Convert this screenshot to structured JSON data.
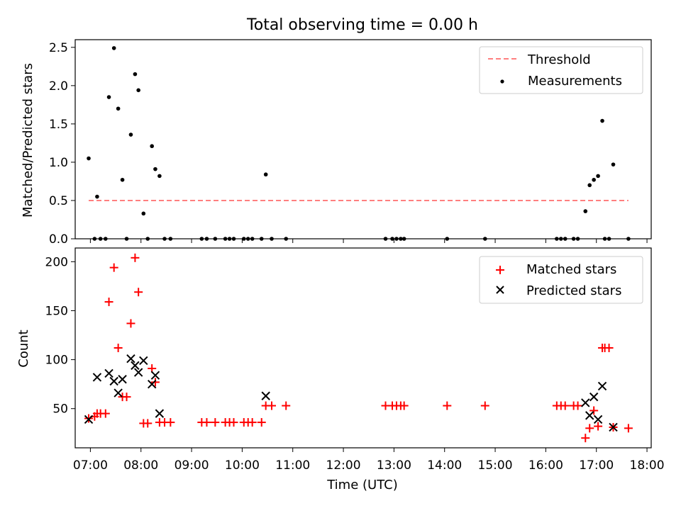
{
  "chart_data": [
    {
      "type": "scatter",
      "title": "Total observing time = 0.00 h",
      "xlabel": "",
      "ylabel": "Matched/Predicted stars",
      "xlim": [
        "06:42",
        "18:05"
      ],
      "ylim": [
        0,
        2.6
      ],
      "yticks": [
        "0.0",
        "0.5",
        "1.0",
        "1.5",
        "2.0",
        "2.5"
      ],
      "grid": false,
      "legend_position": "top-right",
      "legend_entries": [
        "Threshold",
        "Measurements"
      ],
      "colors": {
        "threshold": "#ff7f7f",
        "measurements": "#000000"
      },
      "series": [
        {
          "name": "Threshold",
          "style": "dashed-line",
          "points": [
            [
              "06:58",
              0.5
            ],
            [
              "17:38",
              0.5
            ]
          ]
        },
        {
          "name": "Measurements",
          "style": "dot",
          "points": [
            [
              "06:58",
              1.05
            ],
            [
              "07:05",
              0.0
            ],
            [
              "07:08",
              0.55
            ],
            [
              "07:12",
              0.0
            ],
            [
              "07:18",
              0.0
            ],
            [
              "07:22",
              1.85
            ],
            [
              "07:28",
              2.49
            ],
            [
              "07:33",
              1.7
            ],
            [
              "07:38",
              0.77
            ],
            [
              "07:43",
              0.0
            ],
            [
              "07:48",
              1.36
            ],
            [
              "07:53",
              2.15
            ],
            [
              "07:57",
              1.94
            ],
            [
              "08:03",
              0.33
            ],
            [
              "08:08",
              0.0
            ],
            [
              "08:13",
              1.21
            ],
            [
              "08:17",
              0.91
            ],
            [
              "08:22",
              0.82
            ],
            [
              "08:28",
              0.0
            ],
            [
              "08:35",
              0.0
            ],
            [
              "09:12",
              0.0
            ],
            [
              "09:18",
              0.0
            ],
            [
              "09:28",
              0.0
            ],
            [
              "09:40",
              0.0
            ],
            [
              "09:45",
              0.0
            ],
            [
              "09:50",
              0.0
            ],
            [
              "10:02",
              0.0
            ],
            [
              "10:07",
              0.0
            ],
            [
              "10:12",
              0.0
            ],
            [
              "10:23",
              0.0
            ],
            [
              "10:28",
              0.84
            ],
            [
              "10:35",
              0.0
            ],
            [
              "10:52",
              0.0
            ],
            [
              "12:50",
              0.0
            ],
            [
              "12:58",
              0.0
            ],
            [
              "13:03",
              0.0
            ],
            [
              "13:08",
              0.0
            ],
            [
              "13:12",
              0.0
            ],
            [
              "14:03",
              0.0
            ],
            [
              "14:48",
              0.0
            ],
            [
              "16:13",
              0.0
            ],
            [
              "16:18",
              0.0
            ],
            [
              "16:23",
              0.0
            ],
            [
              "16:33",
              0.0
            ],
            [
              "16:38",
              0.0
            ],
            [
              "16:47",
              0.36
            ],
            [
              "16:52",
              0.7
            ],
            [
              "16:57",
              0.77
            ],
            [
              "17:02",
              0.82
            ],
            [
              "17:07",
              1.54
            ],
            [
              "17:10",
              0.0
            ],
            [
              "17:15",
              0.0
            ],
            [
              "17:20",
              0.97
            ],
            [
              "17:38",
              0.0
            ]
          ]
        }
      ]
    },
    {
      "type": "scatter",
      "title": "",
      "xlabel": "Time (UTC)",
      "ylabel": "Count",
      "xlim": [
        "06:42",
        "18:05"
      ],
      "ylim": [
        10,
        214
      ],
      "xticks": [
        "07:00",
        "08:00",
        "09:00",
        "10:00",
        "11:00",
        "12:00",
        "13:00",
        "14:00",
        "15:00",
        "16:00",
        "17:00",
        "18:00"
      ],
      "yticks": [
        "50",
        "100",
        "150",
        "200"
      ],
      "grid": false,
      "legend_position": "top-right",
      "legend_entries": [
        "Matched stars",
        "Predicted stars"
      ],
      "colors": {
        "matched": "#ff0000",
        "predicted": "#000000"
      },
      "series": [
        {
          "name": "Matched stars",
          "marker": "plus",
          "points": [
            [
              "06:58",
              40
            ],
            [
              "07:05",
              42
            ],
            [
              "07:08",
              45
            ],
            [
              "07:12",
              45
            ],
            [
              "07:18",
              45
            ],
            [
              "07:22",
              159
            ],
            [
              "07:28",
              194
            ],
            [
              "07:33",
              112
            ],
            [
              "07:38",
              62
            ],
            [
              "07:43",
              62
            ],
            [
              "07:48",
              137
            ],
            [
              "07:53",
              204
            ],
            [
              "07:57",
              169
            ],
            [
              "08:03",
              35
            ],
            [
              "08:08",
              35
            ],
            [
              "08:13",
              91
            ],
            [
              "08:17",
              77
            ],
            [
              "08:22",
              36
            ],
            [
              "08:28",
              36
            ],
            [
              "08:35",
              36
            ],
            [
              "09:12",
              36
            ],
            [
              "09:18",
              36
            ],
            [
              "09:28",
              36
            ],
            [
              "09:40",
              36
            ],
            [
              "09:45",
              36
            ],
            [
              "09:50",
              36
            ],
            [
              "10:02",
              36
            ],
            [
              "10:07",
              36
            ],
            [
              "10:12",
              36
            ],
            [
              "10:23",
              36
            ],
            [
              "10:28",
              53
            ],
            [
              "10:35",
              53
            ],
            [
              "10:52",
              53
            ],
            [
              "12:50",
              53
            ],
            [
              "12:58",
              53
            ],
            [
              "13:03",
              53
            ],
            [
              "13:08",
              53
            ],
            [
              "13:12",
              53
            ],
            [
              "14:03",
              53
            ],
            [
              "14:48",
              53
            ],
            [
              "16:13",
              53
            ],
            [
              "16:18",
              53
            ],
            [
              "16:23",
              53
            ],
            [
              "16:33",
              53
            ],
            [
              "16:38",
              53
            ],
            [
              "16:47",
              20
            ],
            [
              "16:52",
              30
            ],
            [
              "16:57",
              48
            ],
            [
              "17:02",
              32
            ],
            [
              "17:07",
              112
            ],
            [
              "17:10",
              112
            ],
            [
              "17:15",
              112
            ],
            [
              "17:20",
              31
            ],
            [
              "17:38",
              30
            ]
          ]
        },
        {
          "name": "Predicted stars",
          "marker": "x",
          "points": [
            [
              "06:58",
              39
            ],
            [
              "07:08",
              82
            ],
            [
              "07:22",
              86
            ],
            [
              "07:28",
              78
            ],
            [
              "07:33",
              66
            ],
            [
              "07:38",
              80
            ],
            [
              "07:48",
              101
            ],
            [
              "07:53",
              94
            ],
            [
              "07:57",
              87
            ],
            [
              "08:03",
              99
            ],
            [
              "08:13",
              75
            ],
            [
              "08:17",
              84
            ],
            [
              "08:22",
              45
            ],
            [
              "10:28",
              63
            ],
            [
              "16:47",
              56
            ],
            [
              "16:52",
              43
            ],
            [
              "16:57",
              62
            ],
            [
              "17:02",
              39
            ],
            [
              "17:07",
              73
            ],
            [
              "17:20",
              31
            ]
          ]
        }
      ]
    }
  ]
}
